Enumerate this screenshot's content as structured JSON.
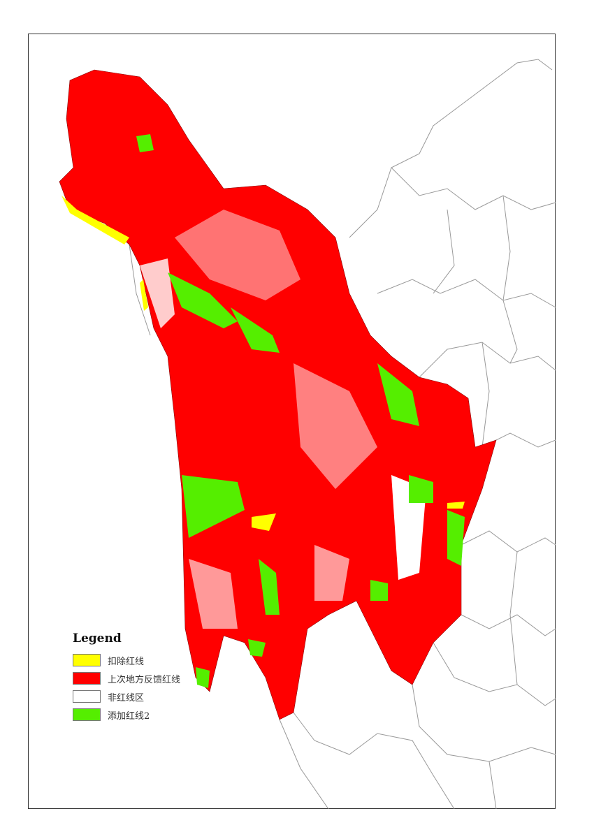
{
  "legend": {
    "title": "Legend",
    "items": [
      {
        "label": "扣除红线",
        "color": "#ffff00"
      },
      {
        "label": "上次地方反馈红线",
        "color": "#ff0000"
      },
      {
        "label": "非红线区",
        "color": "#ffffff"
      },
      {
        "label": "添加红线2",
        "color": "#55ee00"
      }
    ]
  },
  "colors": {
    "boundary": "#999999",
    "frame": "#333333"
  }
}
